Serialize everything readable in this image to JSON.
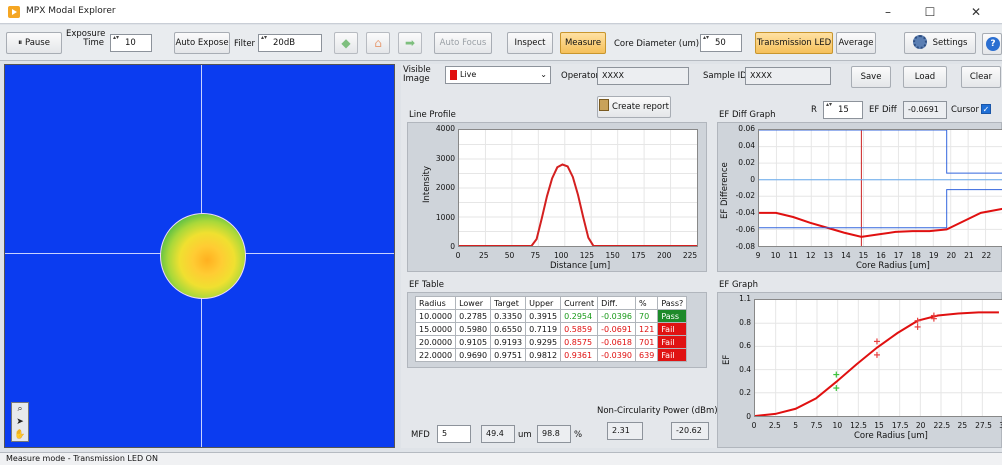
{
  "window": {
    "title": "MPX Modal Explorer",
    "minimize": "–",
    "maximize": "☐",
    "close": "✕"
  },
  "toolbar": {
    "pause": "Pause",
    "exposure_label_1": "Exposure",
    "exposure_label_2": "Time",
    "exposure_value": "10",
    "auto_expose": "Auto Expose",
    "filter_label": "Filter",
    "filter_value": "20dB",
    "auto_focus": "Auto Focus",
    "inspect": "Inspect",
    "measure": "Measure",
    "core_diameter_label": "Core Diameter (um)",
    "core_diameter_value": "50",
    "transmission_led": "Transmission LED",
    "average": "Average",
    "settings": "Settings",
    "help": "?"
  },
  "info": {
    "visible_label_1": "Visible",
    "visible_label_2": "Image",
    "visible_value": "Live",
    "operator_label": "Operator",
    "operator_value": "XXXX",
    "sample_label": "Sample ID",
    "sample_value": "XXXX",
    "save": "Save",
    "load": "Load",
    "clear": "Clear",
    "create_report": "Create report"
  },
  "line_profile": {
    "title": "Line Profile",
    "ylabel": "Intensity",
    "xlabel": "Distance [um]",
    "y_ticks": [
      "4000",
      "3000",
      "2000",
      "1000",
      "0"
    ],
    "x_ticks": [
      "0",
      "25",
      "50",
      "75",
      "100",
      "125",
      "150",
      "175",
      "200",
      "225"
    ]
  },
  "ef_diff": {
    "title": "EF Diff Graph",
    "r_label": "R",
    "r_value": "15",
    "ef_diff_label": "EF Diff",
    "ef_diff_value": "-0.0691",
    "cursor_label": "Cursor",
    "ylabel": "EF Difference",
    "xlabel": "Core Radius [um]",
    "y_ticks": [
      "0.06",
      "0.04",
      "0.02",
      "0",
      "-0.02",
      "-0.04",
      "-0.06",
      "-0.08"
    ],
    "x_ticks": [
      "9",
      "10",
      "11",
      "12",
      "13",
      "14",
      "15",
      "16",
      "17",
      "18",
      "19",
      "20",
      "21",
      "22",
      "2"
    ]
  },
  "ef_table": {
    "title": "EF Table",
    "headers": [
      "Radius",
      "Lower",
      "Target",
      "Upper",
      "Current",
      "Diff.",
      "%",
      "Pass?"
    ],
    "rows": [
      [
        "10.0000",
        "0.2785",
        "0.3350",
        "0.3915",
        "0.2954",
        "-0.0396",
        "70",
        "Pass"
      ],
      [
        "15.0000",
        "0.5980",
        "0.6550",
        "0.7119",
        "0.5859",
        "-0.0691",
        "121",
        "Fail"
      ],
      [
        "20.0000",
        "0.9105",
        "0.9193",
        "0.9295",
        "0.8575",
        "-0.0618",
        "701",
        "Fail"
      ],
      [
        "22.0000",
        "0.9690",
        "0.9751",
        "0.9812",
        "0.9361",
        "-0.0390",
        "639",
        "Fail"
      ]
    ]
  },
  "ef_graph": {
    "title": "EF Graph",
    "ylabel": "EF",
    "xlabel": "Core Radius [um]",
    "y_ticks": [
      "1.1",
      "0.8",
      "0.6",
      "0.4",
      "0.2",
      "0"
    ],
    "x_ticks": [
      "0",
      "2.5",
      "5",
      "7.5",
      "10",
      "12.5",
      "15",
      "17.5",
      "20",
      "22.5",
      "25",
      "27.5",
      "30"
    ]
  },
  "bottom": {
    "mfd_label": "MFD",
    "mfd_value": "5",
    "mfd_um": "49.4",
    "um_label": "um",
    "mfd_pct": "98.8",
    "pct_label": "%",
    "noncirc_label": "Non-Circularity",
    "noncirc_value": "2.31",
    "power_label": "Power (dBm)",
    "power_value": "-20.62"
  },
  "status": "Measure mode - Transmission LED ON",
  "chart_data": [
    {
      "type": "line",
      "ylim": [
        0,
        4200
      ],
      "xlim": [
        0,
        230
      ],
      "series": [
        {
          "x": [
            0,
            70,
            75,
            80,
            85,
            90,
            95,
            100,
            105,
            110,
            115,
            120,
            125,
            130,
            230
          ],
          "y": [
            0,
            0,
            250,
            1000,
            1800,
            2450,
            2850,
            2950,
            2880,
            2500,
            1850,
            1050,
            300,
            0,
            0
          ],
          "color": "#d42020"
        }
      ]
    },
    {
      "type": "line",
      "xlim": [
        9,
        23.3
      ],
      "ylim": [
        -0.08,
        0.06
      ],
      "cursor_x": 15,
      "series": [
        {
          "x": [
            9,
            10,
            11,
            12,
            13,
            14,
            15,
            16,
            17,
            18,
            19,
            20,
            21,
            22,
            23.3
          ],
          "y": [
            -0.04,
            -0.04,
            -0.045,
            -0.052,
            -0.058,
            -0.064,
            -0.069,
            -0.066,
            -0.063,
            -0.062,
            -0.062,
            -0.06,
            -0.05,
            -0.04,
            -0.035
          ],
          "color": "#e01010"
        },
        {
          "x": [
            9,
            20,
            20,
            23.3
          ],
          "y": [
            0.06,
            0.06,
            0.008,
            0.008
          ],
          "color": "#3366dd",
          "step": true
        },
        {
          "x": [
            9,
            20,
            20,
            23.3
          ],
          "y": [
            -0.058,
            -0.058,
            -0.012,
            -0.012
          ],
          "color": "#3366dd",
          "step": true
        },
        {
          "x": [
            9,
            23.3
          ],
          "y": [
            0,
            0
          ],
          "color": "#66aaee"
        }
      ]
    },
    {
      "type": "line",
      "xlim": [
        0,
        30.5
      ],
      "ylim": [
        0,
        1.12
      ],
      "series": [
        {
          "name": "Target",
          "x": [
            0,
            2.5,
            5,
            7.5,
            10,
            12.5,
            15,
            17.5,
            20,
            22.5,
            25,
            27.5,
            30
          ],
          "y": [
            0,
            0.02,
            0.07,
            0.17,
            0.33,
            0.5,
            0.66,
            0.8,
            0.92,
            0.97,
            0.99,
            1.0,
            1.0
          ],
          "color": "#e01010"
        }
      ],
      "markers": [
        {
          "x": 10,
          "y": 0.4,
          "color": "#3cc23c"
        },
        {
          "x": 10,
          "y": 0.27,
          "color": "#3cc23c"
        },
        {
          "x": 15,
          "y": 0.72,
          "color": "#e84040"
        },
        {
          "x": 15,
          "y": 0.59,
          "color": "#e84040"
        },
        {
          "x": 20,
          "y": 0.92,
          "color": "#e84040"
        },
        {
          "x": 20,
          "y": 0.86,
          "color": "#e84040"
        },
        {
          "x": 22,
          "y": 0.97,
          "color": "#e84040"
        },
        {
          "x": 22,
          "y": 0.94,
          "color": "#e84040"
        }
      ]
    }
  ]
}
